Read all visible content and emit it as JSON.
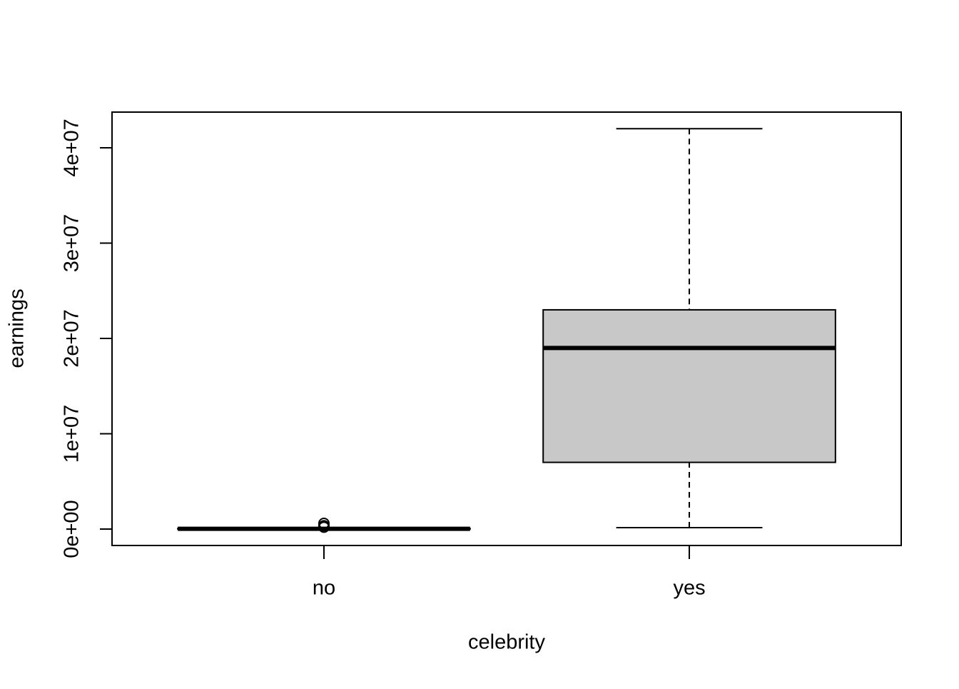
{
  "chart_data": {
    "type": "boxplot",
    "x_label": "celebrity",
    "y_label": "earnings",
    "categories": [
      "no",
      "yes"
    ],
    "boxes": [
      {
        "min": 0,
        "q1": 10000,
        "median": 30000,
        "q3": 60000,
        "max": 120000,
        "outliers": [
          200000,
          350000,
          600000
        ]
      },
      {
        "min": 150000,
        "q1": 7000000,
        "median": 19000000,
        "q3": 23000000,
        "max": 42000000,
        "outliers": []
      }
    ],
    "color": "#c8c8c8",
    "ylim": [
      -1720000,
      43740000
    ],
    "yticks": [
      {
        "value": 0,
        "label": "0e+00"
      },
      {
        "value": 10000000,
        "label": "1e+07"
      },
      {
        "value": 20000000,
        "label": "2e+07"
      },
      {
        "value": 30000000,
        "label": "3e+07"
      },
      {
        "value": 40000000,
        "label": "4e+07"
      }
    ]
  }
}
